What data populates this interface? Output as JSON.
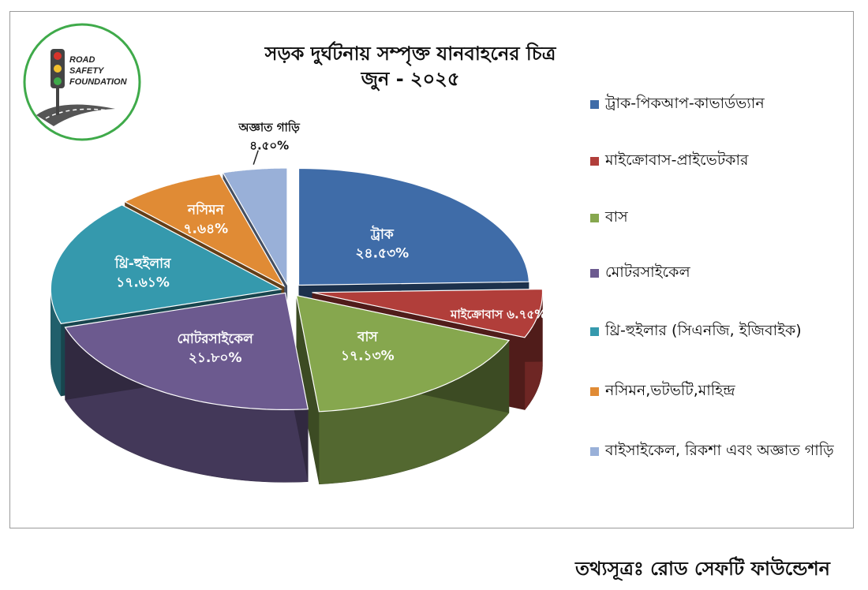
{
  "logo": {
    "line1": "ROAD",
    "line2": "SAFETY",
    "line3": "FOUNDATION"
  },
  "chart_data": {
    "type": "pie",
    "title": "সড়ক দুর্ঘটনায় সম্পৃক্ত যানবাহনের চিত্র",
    "subtitle": "জুন - ২০২৫",
    "unit": "%",
    "slices": [
      {
        "label": "ট্রাক",
        "value": 24.53,
        "value_text": "২৪.৫৩%",
        "legend": "ট্রাক-পিকআপ-কাভার্ডভ্যান",
        "color": "#3f6ca8"
      },
      {
        "label": "মাইক্রোবাস",
        "value": 6.75,
        "value_text": "৬.৭৫%",
        "legend": "মাইক্রোবাস-প্রাইভেটকার",
        "color": "#b13e3a"
      },
      {
        "label": "বাস",
        "value": 17.13,
        "value_text": "১৭.১৩%",
        "legend": "বাস",
        "color": "#86a74e"
      },
      {
        "label": "মোটরসাইকেল",
        "value": 21.8,
        "value_text": "২১.৮০%",
        "legend": "মোটরসাইকেল",
        "color": "#6c5a8f"
      },
      {
        "label": "থ্রি-হুইলার",
        "value": 17.61,
        "value_text": "১৭.৬১%",
        "legend": "থ্রি-হুইলার (সিএনজি, ইজিবাইক)",
        "color": "#3599ad"
      },
      {
        "label": "নসিমন",
        "value": 7.64,
        "value_text": "৭.৬৪%",
        "legend": "নসিমন,ভটভটি,মাহিন্দ্র",
        "color": "#e08b35"
      },
      {
        "label": "অজ্ঞাত গাড়ি",
        "value": 4.5,
        "value_text": "৪.৫০%",
        "legend": "বাইসাইকেল, রিকশা এবং অজ্ঞাত গাড়ি",
        "color": "#99b0d8"
      }
    ],
    "legend_position": "right"
  },
  "source": "তথ্যসূত্রঃ রোড সেফটি ফাউন্ডেশন"
}
